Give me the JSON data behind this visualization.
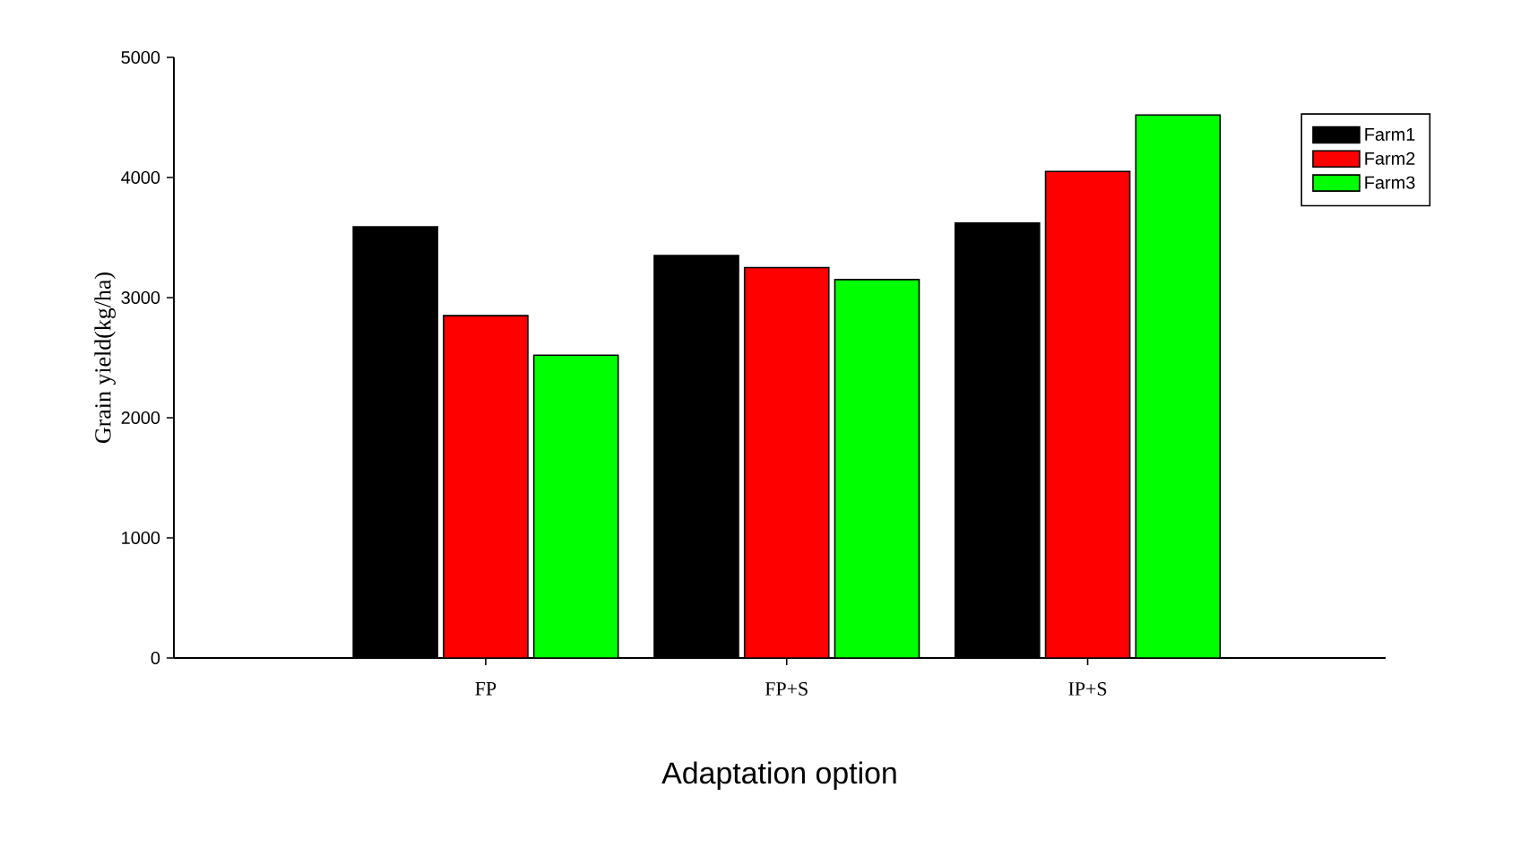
{
  "chart_data": {
    "type": "bar",
    "xlabel": "Adaptation option",
    "ylabel": "Grain yield(kg/ha)",
    "categories": [
      "FP",
      "FP+S",
      "IP+S"
    ],
    "series": [
      {
        "name": "Farm1",
        "color": "#000000",
        "values": [
          3590,
          3350,
          3620
        ]
      },
      {
        "name": "Farm2",
        "color": "#ff0000",
        "values": [
          2850,
          3250,
          4050
        ]
      },
      {
        "name": "Farm3",
        "color": "#00ff00",
        "values": [
          2520,
          3150,
          4520
        ]
      }
    ],
    "ylim": [
      0,
      5000
    ],
    "yticks": [
      0,
      1000,
      2000,
      3000,
      4000,
      5000
    ],
    "grid": false,
    "legend": "right"
  }
}
